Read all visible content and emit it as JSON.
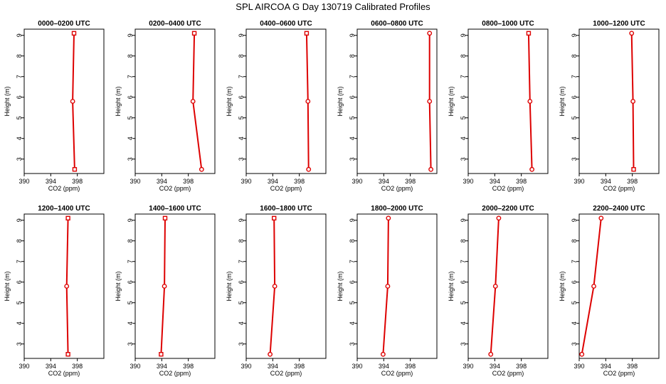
{
  "figure": {
    "title": "SPL AIRCOA G  Day 130719  Calibrated Profiles"
  },
  "colors": {
    "line": "#dd0000",
    "marker": "#dd0000",
    "axis": "#000000"
  },
  "chart_data": [
    {
      "type": "line",
      "title": "0000–0200 UTC",
      "xlabel": "CO2 (ppm)",
      "ylabel": "Height (m)",
      "xlim": [
        390,
        402
      ],
      "ylim": [
        2.3,
        9.3
      ],
      "xticks": [
        390,
        394,
        398
      ],
      "yticks": [
        3,
        4,
        5,
        6,
        7,
        8,
        9
      ],
      "x": [
        397.6,
        397.3,
        397.5
      ],
      "y": [
        2.5,
        5.8,
        9.1
      ],
      "markers": [
        "square",
        "circle",
        "square"
      ]
    },
    {
      "type": "line",
      "title": "0200–0400 UTC",
      "xlabel": "CO2 (ppm)",
      "ylabel": "Height (m)",
      "xlim": [
        390,
        402
      ],
      "ylim": [
        2.3,
        9.3
      ],
      "xticks": [
        390,
        394,
        398
      ],
      "yticks": [
        3,
        4,
        5,
        6,
        7,
        8,
        9
      ],
      "x": [
        400.0,
        398.7,
        398.9
      ],
      "y": [
        2.5,
        5.8,
        9.1
      ],
      "markers": [
        "circle",
        "circle",
        "square"
      ]
    },
    {
      "type": "line",
      "title": "0400–0600 UTC",
      "xlabel": "CO2 (ppm)",
      "ylabel": "Height (m)",
      "xlim": [
        390,
        402
      ],
      "ylim": [
        2.3,
        9.3
      ],
      "xticks": [
        390,
        394,
        398
      ],
      "yticks": [
        3,
        4,
        5,
        6,
        7,
        8,
        9
      ],
      "x": [
        399.4,
        399.3,
        399.1
      ],
      "y": [
        2.5,
        5.8,
        9.1
      ],
      "markers": [
        "circle",
        "circle",
        "square"
      ]
    },
    {
      "type": "line",
      "title": "0600–0800 UTC",
      "xlabel": "CO2 (ppm)",
      "ylabel": "Height (m)",
      "xlim": [
        390,
        402
      ],
      "ylim": [
        2.3,
        9.3
      ],
      "xticks": [
        390,
        394,
        398
      ],
      "yticks": [
        3,
        4,
        5,
        6,
        7,
        8,
        9
      ],
      "x": [
        401.1,
        400.9,
        400.9
      ],
      "y": [
        2.5,
        5.8,
        9.1
      ],
      "markers": [
        "circle",
        "circle",
        "circle"
      ]
    },
    {
      "type": "line",
      "title": "0800–1000 UTC",
      "xlabel": "CO2 (ppm)",
      "ylabel": "Height (m)",
      "xlim": [
        390,
        402
      ],
      "ylim": [
        2.3,
        9.3
      ],
      "xticks": [
        390,
        394,
        398
      ],
      "yticks": [
        3,
        4,
        5,
        6,
        7,
        8,
        9
      ],
      "x": [
        399.6,
        399.3,
        399.1
      ],
      "y": [
        2.5,
        5.8,
        9.1
      ],
      "markers": [
        "circle",
        "circle",
        "square"
      ]
    },
    {
      "type": "line",
      "title": "1000–1200 UTC",
      "xlabel": "CO2 (ppm)",
      "ylabel": "Height (m)",
      "xlim": [
        390,
        402
      ],
      "ylim": [
        2.3,
        9.3
      ],
      "xticks": [
        390,
        394,
        398
      ],
      "yticks": [
        3,
        4,
        5,
        6,
        7,
        8,
        9
      ],
      "x": [
        398.2,
        398.1,
        397.9
      ],
      "y": [
        2.5,
        5.8,
        9.1
      ],
      "markers": [
        "square",
        "circle",
        "circle"
      ]
    },
    {
      "type": "line",
      "title": "1200–1400 UTC",
      "xlabel": "CO2 (ppm)",
      "ylabel": "Height (m)",
      "xlim": [
        390,
        402
      ],
      "ylim": [
        2.3,
        9.3
      ],
      "xticks": [
        390,
        394,
        398
      ],
      "yticks": [
        3,
        4,
        5,
        6,
        7,
        8,
        9
      ],
      "x": [
        396.6,
        396.4,
        396.6
      ],
      "y": [
        2.5,
        5.8,
        9.1
      ],
      "markers": [
        "square",
        "circle",
        "square"
      ]
    },
    {
      "type": "line",
      "title": "1400–1600 UTC",
      "xlabel": "CO2 (ppm)",
      "ylabel": "Height (m)",
      "xlim": [
        390,
        402
      ],
      "ylim": [
        2.3,
        9.3
      ],
      "xticks": [
        390,
        394,
        398
      ],
      "yticks": [
        3,
        4,
        5,
        6,
        7,
        8,
        9
      ],
      "x": [
        393.9,
        394.4,
        394.5
      ],
      "y": [
        2.5,
        5.8,
        9.1
      ],
      "markers": [
        "square",
        "circle",
        "square"
      ]
    },
    {
      "type": "line",
      "title": "1600–1800 UTC",
      "xlabel": "CO2 (ppm)",
      "ylabel": "Height (m)",
      "xlim": [
        390,
        402
      ],
      "ylim": [
        2.3,
        9.3
      ],
      "xticks": [
        390,
        394,
        398
      ],
      "yticks": [
        3,
        4,
        5,
        6,
        7,
        8,
        9
      ],
      "x": [
        393.6,
        394.3,
        394.2
      ],
      "y": [
        2.5,
        5.8,
        9.1
      ],
      "markers": [
        "circle",
        "circle",
        "square"
      ]
    },
    {
      "type": "line",
      "title": "1800–2000 UTC",
      "xlabel": "CO2 (ppm)",
      "ylabel": "Height (m)",
      "xlim": [
        390,
        402
      ],
      "ylim": [
        2.3,
        9.3
      ],
      "xticks": [
        390,
        394,
        398
      ],
      "yticks": [
        3,
        4,
        5,
        6,
        7,
        8,
        9
      ],
      "x": [
        393.9,
        394.6,
        394.7
      ],
      "y": [
        2.5,
        5.8,
        9.1
      ],
      "markers": [
        "circle",
        "circle",
        "circle"
      ]
    },
    {
      "type": "line",
      "title": "2000–2200 UTC",
      "xlabel": "CO2 (ppm)",
      "ylabel": "Height (m)",
      "xlim": [
        390,
        402
      ],
      "ylim": [
        2.3,
        9.3
      ],
      "xticks": [
        390,
        394,
        398
      ],
      "yticks": [
        3,
        4,
        5,
        6,
        7,
        8,
        9
      ],
      "x": [
        393.4,
        394.1,
        394.6
      ],
      "y": [
        2.5,
        5.8,
        9.1
      ],
      "markers": [
        "circle",
        "circle",
        "circle"
      ]
    },
    {
      "type": "line",
      "title": "2200–2400 UTC",
      "xlabel": "CO2 (ppm)",
      "ylabel": "Height (m)",
      "xlim": [
        390,
        402
      ],
      "ylim": [
        2.3,
        9.3
      ],
      "xticks": [
        390,
        394,
        398
      ],
      "yticks": [
        3,
        4,
        5,
        6,
        7,
        8,
        9
      ],
      "x": [
        390.4,
        392.2,
        393.3
      ],
      "y": [
        2.5,
        5.8,
        9.1
      ],
      "markers": [
        "circle",
        "circle",
        "circle"
      ]
    }
  ]
}
